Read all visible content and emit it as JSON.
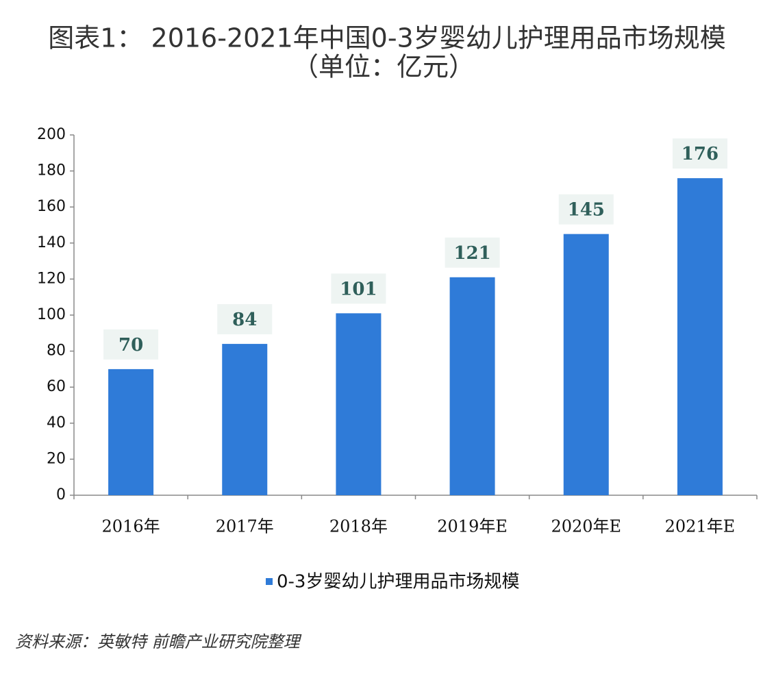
{
  "chart_data": {
    "type": "bar",
    "title": "图表1： 2016-2021年中国0-3岁婴幼儿护理用品市场规模",
    "subtitle": "（单位：亿元）",
    "categories": [
      "2016年",
      "2017年",
      "2018年",
      "2019年E",
      "2020年E",
      "2021年E"
    ],
    "series": [
      {
        "name": "0-3岁婴幼儿护理用品市场规模",
        "color": "#2f7bd8",
        "values": [
          70,
          84,
          101,
          121,
          145,
          176
        ]
      }
    ],
    "ylim": [
      0,
      200
    ],
    "yticks": [
      0,
      20,
      40,
      60,
      80,
      100,
      120,
      140,
      160,
      180,
      200
    ],
    "source": "资料来源：英敏特 前瞻产业研究院整理"
  }
}
